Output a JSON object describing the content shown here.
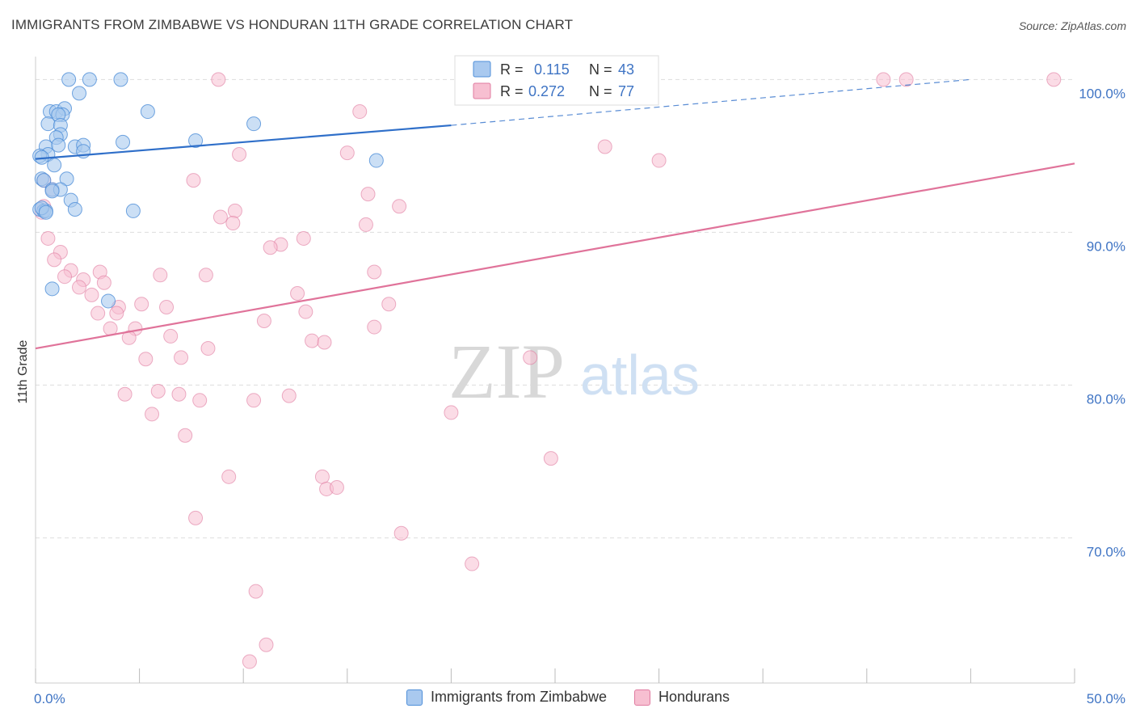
{
  "title": "IMMIGRANTS FROM ZIMBABWE VS HONDURAN 11TH GRADE CORRELATION CHART",
  "source": "Source: ZipAtlas.com",
  "watermark": {
    "zip": "ZIP",
    "atlas": "atlas"
  },
  "legend_box": {
    "rows": [
      {
        "r_label": "R = ",
        "r_value": "0.115",
        "n_label": "N = ",
        "n_value": "43"
      },
      {
        "r_label": "R = ",
        "r_value": "0.272",
        "n_label": "N = ",
        "n_value": "77"
      }
    ]
  },
  "bottom_legend": [
    {
      "label": "Immigrants from Zimbabwe"
    },
    {
      "label": "Hondurans"
    }
  ],
  "colors": {
    "zimbabwe_fill": "#a9c9ef",
    "zimbabwe_stroke": "#4f8fd8",
    "zimbabwe_line": "#2f6fc9",
    "honduran_fill": "#f7bfd1",
    "honduran_stroke": "#e07ba0",
    "honduran_line": "#e0739a",
    "grid": "#dddddd",
    "axis_text": "#3f74c4"
  },
  "chart_data": {
    "type": "scatter",
    "title": "IMMIGRANTS FROM ZIMBABWE VS HONDURAN 11TH GRADE CORRELATION CHART",
    "xlabel": "",
    "ylabel": "11th Grade",
    "xlim": [
      0,
      50
    ],
    "ylim": [
      60.5,
      101.5
    ],
    "x_tick_labels": [
      "0.0%",
      "50.0%"
    ],
    "y_ticks": [
      70,
      80,
      90,
      100
    ],
    "y_tick_labels": [
      "70.0%",
      "80.0%",
      "90.0%",
      "100.0%"
    ],
    "series": [
      {
        "name": "Immigrants from Zimbabwe",
        "R": 0.115,
        "N": 43,
        "trend": {
          "x0": 0,
          "y0": 94.8,
          "x1": 20,
          "y1": 97.0,
          "dash_to_x": 45,
          "dash_to_y": 100.0
        },
        "points": [
          [
            1.6,
            100.0
          ],
          [
            2.6,
            100.0
          ],
          [
            4.1,
            100.0
          ],
          [
            2.1,
            99.1
          ],
          [
            0.7,
            97.9
          ],
          [
            1.0,
            97.9
          ],
          [
            1.4,
            98.1
          ],
          [
            1.3,
            97.7
          ],
          [
            5.4,
            97.9
          ],
          [
            1.1,
            97.7
          ],
          [
            0.6,
            97.1
          ],
          [
            1.2,
            97.0
          ],
          [
            10.5,
            97.1
          ],
          [
            1.2,
            96.4
          ],
          [
            1.0,
            96.2
          ],
          [
            4.2,
            95.9
          ],
          [
            7.7,
            96.0
          ],
          [
            0.5,
            95.6
          ],
          [
            1.1,
            95.7
          ],
          [
            1.9,
            95.6
          ],
          [
            2.3,
            95.7
          ],
          [
            2.3,
            95.3
          ],
          [
            0.6,
            95.1
          ],
          [
            0.2,
            95.0
          ],
          [
            0.3,
            94.9
          ],
          [
            16.4,
            94.7
          ],
          [
            0.9,
            94.4
          ],
          [
            0.3,
            93.5
          ],
          [
            1.5,
            93.5
          ],
          [
            0.4,
            93.4
          ],
          [
            0.8,
            92.8
          ],
          [
            1.2,
            92.8
          ],
          [
            0.8,
            92.7
          ],
          [
            1.7,
            92.1
          ],
          [
            0.2,
            91.5
          ],
          [
            0.4,
            91.4
          ],
          [
            0.5,
            91.4
          ],
          [
            1.9,
            91.5
          ],
          [
            4.7,
            91.4
          ],
          [
            0.8,
            86.3
          ],
          [
            3.5,
            85.5
          ],
          [
            0.3,
            91.6
          ],
          [
            0.5,
            91.3
          ]
        ]
      },
      {
        "name": "Hondurans",
        "R": 0.272,
        "N": 77,
        "trend": {
          "x0": 0,
          "y0": 82.4,
          "x1": 50,
          "y1": 94.5
        },
        "points": [
          [
            8.8,
            100.0
          ],
          [
            27.8,
            100.0
          ],
          [
            40.8,
            100.0
          ],
          [
            41.9,
            100.0
          ],
          [
            49.0,
            100.0
          ],
          [
            15.6,
            97.9
          ],
          [
            27.4,
            95.6
          ],
          [
            15.0,
            95.2
          ],
          [
            9.8,
            95.1
          ],
          [
            30.0,
            94.7
          ],
          [
            7.6,
            93.4
          ],
          [
            0.4,
            93.4
          ],
          [
            0.8,
            92.8
          ],
          [
            16.0,
            92.5
          ],
          [
            0.4,
            91.7
          ],
          [
            17.5,
            91.7
          ],
          [
            9.6,
            91.4
          ],
          [
            8.9,
            91.0
          ],
          [
            9.5,
            90.6
          ],
          [
            15.9,
            90.5
          ],
          [
            0.3,
            91.3
          ],
          [
            0.6,
            89.6
          ],
          [
            12.9,
            89.6
          ],
          [
            11.8,
            89.2
          ],
          [
            11.3,
            89.0
          ],
          [
            1.2,
            88.7
          ],
          [
            0.9,
            88.2
          ],
          [
            1.7,
            87.5
          ],
          [
            3.1,
            87.4
          ],
          [
            16.3,
            87.4
          ],
          [
            6.0,
            87.2
          ],
          [
            8.2,
            87.2
          ],
          [
            1.4,
            87.1
          ],
          [
            2.3,
            86.9
          ],
          [
            2.1,
            86.4
          ],
          [
            3.3,
            86.7
          ],
          [
            12.6,
            86.0
          ],
          [
            2.7,
            85.9
          ],
          [
            5.1,
            85.3
          ],
          [
            17.0,
            85.3
          ],
          [
            4.0,
            85.1
          ],
          [
            6.3,
            85.1
          ],
          [
            11.0,
            84.2
          ],
          [
            13.0,
            84.8
          ],
          [
            3.0,
            84.7
          ],
          [
            3.9,
            84.7
          ],
          [
            3.6,
            83.7
          ],
          [
            4.8,
            83.7
          ],
          [
            16.3,
            83.8
          ],
          [
            4.5,
            83.1
          ],
          [
            6.5,
            83.2
          ],
          [
            13.3,
            82.9
          ],
          [
            13.9,
            82.8
          ],
          [
            8.3,
            82.4
          ],
          [
            5.3,
            81.7
          ],
          [
            7.0,
            81.8
          ],
          [
            23.8,
            81.8
          ],
          [
            5.9,
            79.6
          ],
          [
            4.3,
            79.4
          ],
          [
            6.9,
            79.4
          ],
          [
            12.2,
            79.3
          ],
          [
            7.9,
            79.0
          ],
          [
            10.5,
            79.0
          ],
          [
            5.6,
            78.1
          ],
          [
            20.0,
            78.2
          ],
          [
            7.2,
            76.7
          ],
          [
            24.8,
            75.2
          ],
          [
            9.3,
            74.0
          ],
          [
            13.8,
            74.0
          ],
          [
            14.0,
            73.2
          ],
          [
            14.5,
            73.3
          ],
          [
            7.7,
            71.3
          ],
          [
            17.6,
            70.3
          ],
          [
            21.0,
            68.3
          ],
          [
            10.6,
            66.5
          ],
          [
            11.1,
            63.0
          ],
          [
            10.3,
            61.9
          ]
        ]
      }
    ]
  }
}
